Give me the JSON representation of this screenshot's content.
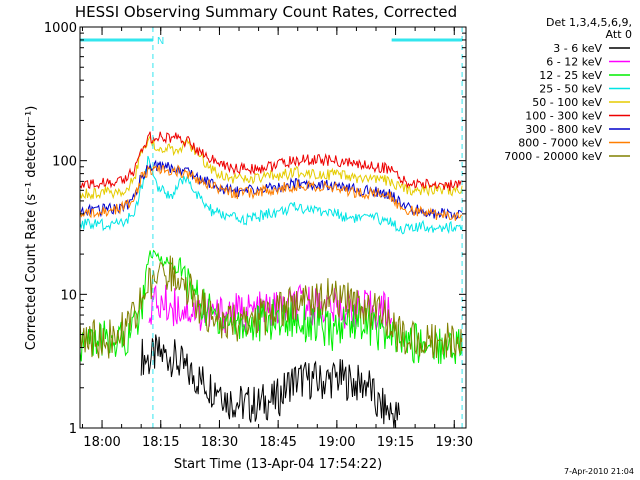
{
  "page_title": "HESSI Observing Summary Count Rates, Corrected",
  "footer_timestamp": "7-Apr-2010 21:04",
  "chart_data": {
    "type": "line",
    "title": "HESSI Observing Summary Count Rates, Corrected",
    "xlabel": "Start Time (13-Apr-04 17:54:22)",
    "ylabel": "Corrected Count Rate (s⁻¹ detector⁻¹)",
    "y_scale": "log",
    "ylim": [
      1,
      1000
    ],
    "xlim": [
      "17:54:22",
      "19:33:00"
    ],
    "y_ticks": [
      {
        "value": 1,
        "label": "1"
      },
      {
        "value": 10,
        "label": "10"
      },
      {
        "value": 100,
        "label": "100"
      },
      {
        "value": 1000,
        "label": "1000"
      }
    ],
    "x_ticks": [
      {
        "value": "18:00",
        "label": "18:00"
      },
      {
        "value": "18:15",
        "label": "18:15"
      },
      {
        "value": "18:30",
        "label": "18:30"
      },
      {
        "value": "18:45",
        "label": "18:45"
      },
      {
        "value": "19:00",
        "label": "19:00"
      },
      {
        "value": "19:15",
        "label": "19:15"
      },
      {
        "value": "19:30",
        "label": "19:30"
      }
    ],
    "legend": {
      "placement": "right-outside",
      "header_line1": "Det 1,3,4,5,6,9,",
      "header_line2": "Att 0"
    },
    "bars": [
      {
        "start": "17:54:22",
        "end": "18:13:00",
        "level": 800
      },
      {
        "start": "19:14:00",
        "end": "19:32:00",
        "level": 800
      }
    ],
    "bar_label": "N",
    "vlines": [
      "18:13:00",
      "19:32:00"
    ],
    "vline_color": "#33e6ee",
    "series": [
      {
        "name": "3 - 6 keV",
        "color": "#000000",
        "x": [
          "17:54:22",
          "17:56:00",
          "17:58:00",
          "18:00:00",
          "18:02:00",
          "18:04:00",
          "18:06:00",
          "18:08:00",
          "18:10:00",
          "18:12:00",
          "18:14:00",
          "18:16:00",
          "18:18:00",
          "18:20:00",
          "18:22:00",
          "18:24:00",
          "18:26:00",
          "18:28:00",
          "18:30:00",
          "18:32:00",
          "18:34:00",
          "18:36:00",
          "18:38:00",
          "18:40:00",
          "18:42:00",
          "18:44:00",
          "18:46:00",
          "18:48:00",
          "18:50:00",
          "18:52:00",
          "18:54:00",
          "18:56:00",
          "18:58:00",
          "19:00:00",
          "19:02:00",
          "19:04:00",
          "19:06:00",
          "19:08:00",
          "19:10:00",
          "19:12:00",
          "19:14:00",
          "19:16:00",
          "19:18:00",
          "19:20:00",
          "19:22:00",
          "19:24:00",
          "19:26:00",
          "19:28:00",
          "19:30:00",
          "19:32:00"
        ],
        "values": [
          null,
          null,
          null,
          null,
          null,
          null,
          null,
          null,
          3.5,
          3.2,
          3.6,
          3.5,
          3.4,
          3.0,
          2.6,
          2.4,
          2.2,
          2.0,
          2.1,
          1.6,
          1.6,
          1.5,
          1.5,
          1.5,
          1.6,
          1.6,
          1.8,
          2.2,
          2.3,
          2.3,
          2.3,
          2.2,
          2.3,
          2.4,
          2.3,
          2.2,
          2.1,
          2.2,
          1.5,
          1.4,
          1.3,
          1.2,
          null,
          null,
          null,
          null,
          null,
          null,
          null,
          null
        ]
      },
      {
        "name": "6 - 12 keV",
        "color": "#ff00ff",
        "x": [
          "17:54:22",
          "17:56:00",
          "17:58:00",
          "18:00:00",
          "18:02:00",
          "18:04:00",
          "18:06:00",
          "18:08:00",
          "18:10:00",
          "18:12:00",
          "18:14:00",
          "18:16:00",
          "18:18:00",
          "18:20:00",
          "18:22:00",
          "18:24:00",
          "18:26:00",
          "18:28:00",
          "18:30:00",
          "18:32:00",
          "18:34:00",
          "18:36:00",
          "18:38:00",
          "18:40:00",
          "18:42:00",
          "18:44:00",
          "18:46:00",
          "18:48:00",
          "18:50:00",
          "18:52:00",
          "18:54:00",
          "18:56:00",
          "18:58:00",
          "19:00:00",
          "19:02:00",
          "19:04:00",
          "19:06:00",
          "19:08:00",
          "19:10:00",
          "19:12:00",
          "19:14:00",
          "19:16:00",
          "19:18:00",
          "19:20:00",
          "19:22:00",
          "19:24:00",
          "19:26:00",
          "19:28:00",
          "19:30:00",
          "19:32:00"
        ],
        "values": [
          null,
          null,
          null,
          null,
          null,
          null,
          null,
          null,
          null,
          8.3,
          8.5,
          8.4,
          8.2,
          8.0,
          7.8,
          7.5,
          7.2,
          7.0,
          7.1,
          7.3,
          7.3,
          7.3,
          7.4,
          7.4,
          7.5,
          7.6,
          7.8,
          8.0,
          8.2,
          8.3,
          8.3,
          8.2,
          8.0,
          7.8,
          7.8,
          7.8,
          7.6,
          7.6,
          7.5,
          7.5,
          7.6,
          null,
          null,
          null,
          null,
          null,
          null,
          null,
          null,
          null
        ]
      },
      {
        "name": "12 - 25 keV",
        "color": "#00ee00",
        "x": [
          "17:54:22",
          "17:56:00",
          "17:58:00",
          "18:00:00",
          "18:02:00",
          "18:04:00",
          "18:06:00",
          "18:08:00",
          "18:10:00",
          "18:12:00",
          "18:14:00",
          "18:16:00",
          "18:18:00",
          "18:20:00",
          "18:22:00",
          "18:24:00",
          "18:26:00",
          "18:28:00",
          "18:30:00",
          "18:32:00",
          "18:34:00",
          "18:36:00",
          "18:38:00",
          "18:40:00",
          "18:42:00",
          "18:44:00",
          "18:46:00",
          "18:48:00",
          "18:50:00",
          "18:52:00",
          "18:54:00",
          "18:56:00",
          "18:58:00",
          "19:00:00",
          "19:02:00",
          "19:04:00",
          "19:06:00",
          "19:08:00",
          "19:10:00",
          "19:12:00",
          "19:14:00",
          "19:16:00",
          "19:18:00",
          "19:20:00",
          "19:22:00",
          "19:24:00",
          "19:26:00",
          "19:28:00",
          "19:30:00",
          "19:32:00"
        ],
        "values": [
          4.3,
          4.4,
          4.4,
          4.5,
          4.5,
          4.6,
          4.8,
          5.5,
          8.0,
          20.0,
          19.0,
          18.0,
          16.5,
          14.5,
          12.0,
          10.0,
          8.0,
          7.2,
          6.6,
          6.3,
          6.1,
          6.0,
          6.0,
          6.1,
          6.3,
          6.5,
          6.6,
          6.6,
          6.5,
          6.2,
          5.9,
          5.6,
          5.3,
          5.2,
          6.0,
          6.6,
          6.5,
          6.0,
          5.5,
          5.0,
          4.6,
          4.4,
          4.3,
          4.3,
          4.2,
          4.2,
          4.2,
          4.2,
          4.2,
          4.2
        ]
      },
      {
        "name": "25 - 50 keV",
        "color": "#00e5e5",
        "x": [
          "17:54:22",
          "17:56:00",
          "17:58:00",
          "18:00:00",
          "18:02:00",
          "18:04:00",
          "18:06:00",
          "18:08:00",
          "18:10:00",
          "18:12:00",
          "18:14:00",
          "18:16:00",
          "18:18:00",
          "18:20:00",
          "18:22:00",
          "18:24:00",
          "18:26:00",
          "18:28:00",
          "18:30:00",
          "18:32:00",
          "18:34:00",
          "18:36:00",
          "18:38:00",
          "18:40:00",
          "18:42:00",
          "18:44:00",
          "18:46:00",
          "18:48:00",
          "18:50:00",
          "18:52:00",
          "18:54:00",
          "18:56:00",
          "18:58:00",
          "19:00:00",
          "19:02:00",
          "19:04:00",
          "19:06:00",
          "19:08:00",
          "19:10:00",
          "19:12:00",
          "19:14:00",
          "19:16:00",
          "19:18:00",
          "19:20:00",
          "19:22:00",
          "19:24:00",
          "19:26:00",
          "19:28:00",
          "19:30:00",
          "19:32:00"
        ],
        "values": [
          34,
          33,
          34,
          33,
          34,
          33,
          35,
          40,
          60,
          110,
          63,
          58,
          55,
          67,
          75,
          56,
          48,
          42,
          40,
          38,
          37,
          36,
          37,
          38,
          40,
          41,
          42,
          44,
          45,
          44,
          43,
          42,
          41,
          40,
          38,
          38,
          37,
          37,
          37,
          36,
          35,
          31,
          31,
          31,
          32,
          32,
          32,
          32,
          32,
          32
        ]
      },
      {
        "name": "50 - 100 keV",
        "color": "#e5cc00",
        "x": [
          "17:54:22",
          "17:56:00",
          "17:58:00",
          "18:00:00",
          "18:02:00",
          "18:04:00",
          "18:06:00",
          "18:08:00",
          "18:10:00",
          "18:12:00",
          "18:14:00",
          "18:16:00",
          "18:18:00",
          "18:20:00",
          "18:22:00",
          "18:24:00",
          "18:26:00",
          "18:28:00",
          "18:30:00",
          "18:32:00",
          "18:34:00",
          "18:36:00",
          "18:38:00",
          "18:40:00",
          "18:42:00",
          "18:44:00",
          "18:46:00",
          "18:48:00",
          "18:50:00",
          "18:52:00",
          "18:54:00",
          "18:56:00",
          "18:58:00",
          "19:00:00",
          "19:02:00",
          "19:04:00",
          "19:06:00",
          "19:08:00",
          "19:10:00",
          "19:12:00",
          "19:14:00",
          "19:16:00",
          "19:18:00",
          "19:20:00",
          "19:22:00",
          "19:24:00",
          "19:26:00",
          "19:28:00",
          "19:30:00",
          "19:32:00"
        ],
        "values": [
          57,
          58,
          57,
          58,
          58,
          59,
          62,
          72,
          110,
          140,
          130,
          125,
          120,
          128,
          133,
          118,
          100,
          88,
          80,
          76,
          74,
          72,
          72,
          73,
          75,
          77,
          79,
          80,
          82,
          82,
          81,
          80,
          79,
          78,
          76,
          74,
          73,
          72,
          72,
          71,
          70,
          62,
          61,
          61,
          61,
          61,
          61,
          61,
          60,
          60
        ]
      },
      {
        "name": "100 - 300 keV",
        "color": "#ee0000",
        "x": [
          "17:54:22",
          "17:56:00",
          "17:58:00",
          "18:00:00",
          "18:02:00",
          "18:04:00",
          "18:06:00",
          "18:08:00",
          "18:10:00",
          "18:12:00",
          "18:14:00",
          "18:16:00",
          "18:18:00",
          "18:20:00",
          "18:22:00",
          "18:24:00",
          "18:26:00",
          "18:28:00",
          "18:30:00",
          "18:32:00",
          "18:34:00",
          "18:36:00",
          "18:38:00",
          "18:40:00",
          "18:42:00",
          "18:44:00",
          "18:46:00",
          "18:48:00",
          "18:50:00",
          "18:52:00",
          "18:54:00",
          "18:56:00",
          "18:58:00",
          "19:00:00",
          "19:02:00",
          "19:04:00",
          "19:06:00",
          "19:08:00",
          "19:10:00",
          "19:12:00",
          "19:14:00",
          "19:16:00",
          "19:18:00",
          "19:20:00",
          "19:22:00",
          "19:24:00",
          "19:26:00",
          "19:28:00",
          "19:30:00",
          "19:32:00"
        ],
        "values": [
          66,
          67,
          68,
          68,
          70,
          70,
          73,
          82,
          125,
          150,
          150,
          152,
          150,
          145,
          138,
          124,
          112,
          102,
          95,
          90,
          88,
          87,
          87,
          88,
          90,
          92,
          95,
          98,
          100,
          101,
          102,
          101,
          100,
          99,
          97,
          95,
          93,
          92,
          90,
          89,
          87,
          72,
          68,
          67,
          67,
          67,
          66,
          66,
          65,
          65
        ]
      },
      {
        "name": "300 - 800 keV",
        "color": "#0000cc",
        "x": [
          "17:54:22",
          "17:56:00",
          "17:58:00",
          "18:00:00",
          "18:02:00",
          "18:04:00",
          "18:06:00",
          "18:08:00",
          "18:10:00",
          "18:12:00",
          "18:14:00",
          "18:16:00",
          "18:18:00",
          "18:20:00",
          "18:22:00",
          "18:24:00",
          "18:26:00",
          "18:28:00",
          "18:30:00",
          "18:32:00",
          "18:34:00",
          "18:36:00",
          "18:38:00",
          "18:40:00",
          "18:42:00",
          "18:44:00",
          "18:46:00",
          "18:48:00",
          "18:50:00",
          "18:52:00",
          "18:54:00",
          "18:56:00",
          "18:58:00",
          "19:00:00",
          "19:02:00",
          "19:04:00",
          "19:06:00",
          "19:08:00",
          "19:10:00",
          "19:12:00",
          "19:14:00",
          "19:16:00",
          "19:18:00",
          "19:20:00",
          "19:22:00",
          "19:24:00",
          "19:26:00",
          "19:28:00",
          "19:30:00",
          "19:32:00"
        ],
        "values": [
          41,
          42,
          42,
          43,
          44,
          44,
          46,
          52,
          78,
          90,
          90,
          89,
          88,
          86,
          83,
          77,
          71,
          66,
          63,
          60,
          59,
          59,
          60,
          61,
          62,
          63,
          64,
          66,
          67,
          67,
          67,
          66,
          65,
          64,
          62,
          61,
          60,
          59,
          58,
          57,
          56,
          48,
          44,
          43,
          42,
          41,
          40,
          40,
          40,
          40
        ]
      },
      {
        "name": "800 - 7000 keV",
        "color": "#ff7f00",
        "x": [
          "17:54:22",
          "17:56:00",
          "17:58:00",
          "18:00:00",
          "18:02:00",
          "18:04:00",
          "18:06:00",
          "18:08:00",
          "18:10:00",
          "18:12:00",
          "18:14:00",
          "18:16:00",
          "18:18:00",
          "18:20:00",
          "18:22:00",
          "18:24:00",
          "18:26:00",
          "18:28:00",
          "18:30:00",
          "18:32:00",
          "18:34:00",
          "18:36:00",
          "18:38:00",
          "18:40:00",
          "18:42:00",
          "18:44:00",
          "18:46:00",
          "18:48:00",
          "18:50:00",
          "18:52:00",
          "18:54:00",
          "18:56:00",
          "18:58:00",
          "19:00:00",
          "19:02:00",
          "19:04:00",
          "19:06:00",
          "19:08:00",
          "19:10:00",
          "19:12:00",
          "19:14:00",
          "19:16:00",
          "19:18:00",
          "19:20:00",
          "19:22:00",
          "19:24:00",
          "19:26:00",
          "19:28:00",
          "19:30:00",
          "19:32:00"
        ],
        "values": [
          40,
          41,
          41,
          42,
          43,
          43,
          45,
          50,
          75,
          86,
          87,
          86,
          85,
          83,
          80,
          74,
          69,
          64,
          61,
          58,
          57,
          57,
          58,
          59,
          60,
          61,
          62,
          64,
          65,
          65,
          65,
          64,
          63,
          62,
          60,
          59,
          58,
          57,
          56,
          55,
          54,
          46,
          43,
          42,
          41,
          40,
          39,
          39,
          39,
          39
        ]
      },
      {
        "name": "7000 - 20000 keV",
        "color": "#808000",
        "x": [
          "17:54:22",
          "17:56:00",
          "17:58:00",
          "18:00:00",
          "18:02:00",
          "18:04:00",
          "18:06:00",
          "18:08:00",
          "18:10:00",
          "18:12:00",
          "18:14:00",
          "18:16:00",
          "18:18:00",
          "18:20:00",
          "18:22:00",
          "18:24:00",
          "18:26:00",
          "18:28:00",
          "18:30:00",
          "18:32:00",
          "18:34:00",
          "18:36:00",
          "18:38:00",
          "18:40:00",
          "18:42:00",
          "18:44:00",
          "18:46:00",
          "18:48:00",
          "18:50:00",
          "18:52:00",
          "18:54:00",
          "18:56:00",
          "18:58:00",
          "19:00:00",
          "19:02:00",
          "19:04:00",
          "19:06:00",
          "19:08:00",
          "19:10:00",
          "19:12:00",
          "19:14:00",
          "19:16:00",
          "19:18:00",
          "19:20:00",
          "19:22:00",
          "19:24:00",
          "19:26:00",
          "19:28:00",
          "19:30:00",
          "19:32:00"
        ],
        "values": [
          4.5,
          4.5,
          4.6,
          4.6,
          4.7,
          4.9,
          5.4,
          6.5,
          9.0,
          11.5,
          13.5,
          15.0,
          14.5,
          13.0,
          11.0,
          9.0,
          7.8,
          7.0,
          6.4,
          6.0,
          5.9,
          6.0,
          6.2,
          6.5,
          6.8,
          7.2,
          7.6,
          8.1,
          8.6,
          9.0,
          9.2,
          9.3,
          9.3,
          9.2,
          9.0,
          8.7,
          8.4,
          8.0,
          7.4,
          6.6,
          5.8,
          5.0,
          4.8,
          4.7,
          4.6,
          4.6,
          4.6,
          4.6,
          4.6,
          4.6
        ]
      }
    ]
  }
}
